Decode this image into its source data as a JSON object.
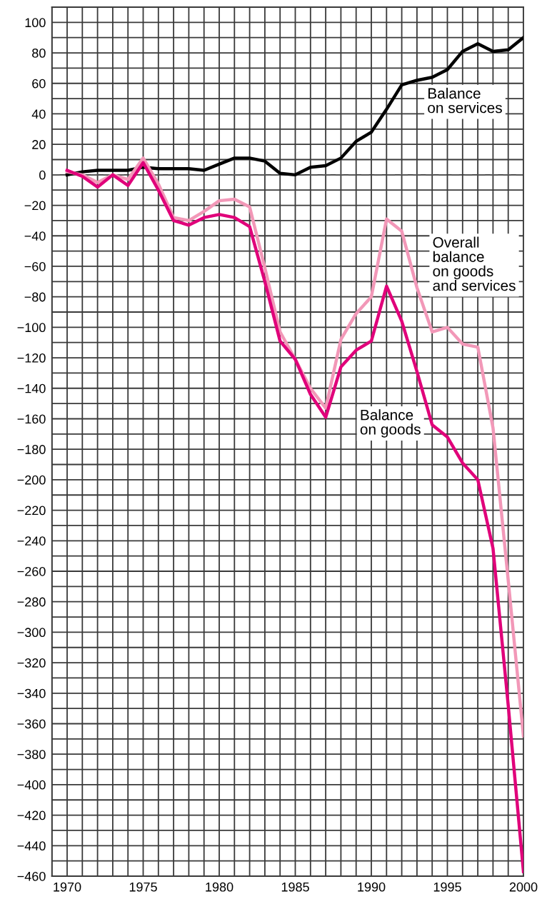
{
  "chart_data": {
    "type": "line",
    "x": [
      1970,
      1971,
      1972,
      1973,
      1974,
      1975,
      1976,
      1977,
      1978,
      1979,
      1980,
      1981,
      1982,
      1983,
      1984,
      1985,
      1986,
      1987,
      1988,
      1989,
      1990,
      1991,
      1992,
      1993,
      1994,
      1995,
      1996,
      1997,
      1998,
      1999,
      2000
    ],
    "series": [
      {
        "name": "Balance\non services",
        "color": "#000000",
        "values": [
          0,
          2,
          3,
          3,
          3,
          5,
          4,
          4,
          4,
          3,
          7,
          11,
          11,
          9,
          1,
          0,
          5,
          6,
          11,
          22,
          28,
          43,
          59,
          62,
          64,
          69,
          81,
          86,
          81,
          82,
          90
        ]
      },
      {
        "name": "Overall\nbalance\non goods\nand services",
        "color": "#f298b8",
        "values": [
          2,
          0,
          -5,
          0,
          -3,
          11,
          -6,
          -28,
          -30,
          -24,
          -17,
          -16,
          -21,
          -61,
          -103,
          -121,
          -140,
          -153,
          -108,
          -91,
          -80,
          -29,
          -37,
          -74,
          -103,
          -100,
          -111,
          -113,
          -166,
          -266,
          -368
        ]
      },
      {
        "name": "Balance\non goods",
        "color": "#e0007a",
        "values": [
          3,
          -1,
          -8,
          0,
          -7,
          8,
          -10,
          -30,
          -33,
          -28,
          -26,
          -28,
          -34,
          -70,
          -109,
          -121,
          -144,
          -159,
          -126,
          -115,
          -109,
          -73,
          -96,
          -129,
          -164,
          -172,
          -189,
          -200,
          -245,
          -348,
          -457
        ]
      }
    ],
    "xlim": [
      1969,
      2000
    ],
    "xticks": [
      {
        "value": 1969,
        "label": null
      },
      1970,
      {
        "value": 1971,
        "label": null
      },
      {
        "value": 1972,
        "label": null
      },
      {
        "value": 1973,
        "label": null
      },
      {
        "value": 1974,
        "label": null
      },
      1975,
      {
        "value": 1976,
        "label": null
      },
      {
        "value": 1977,
        "label": null
      },
      {
        "value": 1978,
        "label": null
      },
      {
        "value": 1979,
        "label": null
      },
      1980,
      {
        "value": 1981,
        "label": null
      },
      {
        "value": 1982,
        "label": null
      },
      {
        "value": 1983,
        "label": null
      },
      {
        "value": 1984,
        "label": null
      },
      1985,
      {
        "value": 1986,
        "label": null
      },
      {
        "value": 1987,
        "label": null
      },
      {
        "value": 1988,
        "label": null
      },
      {
        "value": 1989,
        "label": null
      },
      1990,
      {
        "value": 1991,
        "label": null
      },
      {
        "value": 1992,
        "label": null
      },
      {
        "value": 1993,
        "label": null
      },
      {
        "value": 1994,
        "label": null
      },
      1995,
      {
        "value": 1996,
        "label": null
      },
      {
        "value": 1997,
        "label": null
      },
      {
        "value": 1998,
        "label": null
      },
      {
        "value": 1999,
        "label": null
      },
      2000
    ],
    "ylim": [
      -460,
      110
    ],
    "yticks": [
      -460,
      {
        "value": -450,
        "label": null
      },
      -440,
      {
        "value": -430,
        "label": null
      },
      -420,
      {
        "value": -410,
        "label": null
      },
      -400,
      {
        "value": -390,
        "label": null
      },
      -380,
      {
        "value": -370,
        "label": null
      },
      -360,
      {
        "value": -350,
        "label": null
      },
      -340,
      {
        "value": -330,
        "label": null
      },
      -320,
      {
        "value": -310,
        "label": null
      },
      -300,
      {
        "value": -290,
        "label": null
      },
      -280,
      {
        "value": -270,
        "label": null
      },
      -260,
      {
        "value": -250,
        "label": null
      },
      -240,
      {
        "value": -230,
        "label": null
      },
      -220,
      {
        "value": -210,
        "label": null
      },
      -200,
      {
        "value": -190,
        "label": null
      },
      -180,
      {
        "value": -170,
        "label": null
      },
      -160,
      {
        "value": -150,
        "label": null
      },
      -140,
      {
        "value": -130,
        "label": null
      },
      -120,
      {
        "value": -110,
        "label": null
      },
      -100,
      {
        "value": -90,
        "label": null
      },
      -80,
      {
        "value": -70,
        "label": null
      },
      -60,
      {
        "value": -50,
        "label": null
      },
      -40,
      {
        "value": -30,
        "label": null
      },
      -20,
      {
        "value": -10,
        "label": null
      },
      0,
      {
        "value": 10,
        "label": null
      },
      20,
      {
        "value": 30,
        "label": null
      },
      40,
      {
        "value": 50,
        "label": null
      },
      60,
      {
        "value": 70,
        "label": null
      },
      80,
      {
        "value": 90,
        "label": null
      },
      100,
      {
        "value": 110,
        "label": null
      }
    ],
    "grid": true,
    "legend": false,
    "marker": "none",
    "line_style": "solid",
    "ref_lines": [
      {
        "axis": "y",
        "value": 0,
        "color": "#555555",
        "line_style": "dashed"
      }
    ]
  }
}
